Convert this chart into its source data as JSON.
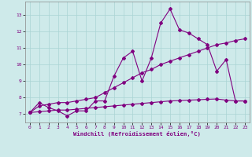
{
  "xlabel": "Windchill (Refroidissement éolien,°C)",
  "background_color": "#ceeaea",
  "grid_color": "#aad4d4",
  "line_color": "#800080",
  "xlim": [
    -0.5,
    23.5
  ],
  "ylim": [
    6.5,
    13.8
  ],
  "yticks": [
    7,
    8,
    9,
    10,
    11,
    12,
    13
  ],
  "xticks": [
    0,
    1,
    2,
    3,
    4,
    5,
    6,
    7,
    8,
    9,
    10,
    11,
    12,
    13,
    14,
    15,
    16,
    17,
    18,
    19,
    20,
    21,
    22,
    23
  ],
  "series1_x": [
    0,
    1,
    2,
    3,
    4,
    5,
    6,
    7,
    8,
    9,
    10,
    11,
    12,
    13,
    14,
    15,
    16,
    17,
    18,
    19,
    20,
    21,
    22,
    23
  ],
  "series1_y": [
    7.1,
    7.7,
    7.4,
    7.2,
    6.9,
    7.2,
    7.2,
    7.8,
    7.8,
    9.3,
    10.4,
    10.8,
    9.0,
    10.4,
    12.5,
    13.35,
    12.1,
    11.9,
    11.55,
    11.2,
    9.6,
    10.3,
    7.8,
    7.8
  ],
  "series2_x": [
    0,
    1,
    2,
    3,
    4,
    5,
    6,
    7,
    8,
    9,
    10,
    11,
    12,
    13,
    14,
    15,
    16,
    17,
    18,
    19,
    20,
    21,
    22,
    23
  ],
  "series2_y": [
    7.1,
    7.5,
    7.6,
    7.7,
    7.7,
    7.8,
    7.9,
    8.0,
    8.3,
    8.6,
    8.9,
    9.2,
    9.5,
    9.7,
    10.0,
    10.2,
    10.4,
    10.6,
    10.8,
    11.0,
    11.2,
    11.3,
    11.45,
    11.55
  ],
  "series3_x": [
    0,
    1,
    2,
    3,
    4,
    5,
    6,
    7,
    8,
    9,
    10,
    11,
    12,
    13,
    14,
    15,
    16,
    17,
    18,
    19,
    20,
    21,
    22,
    23
  ],
  "series3_y": [
    7.1,
    7.15,
    7.2,
    7.25,
    7.25,
    7.3,
    7.35,
    7.4,
    7.45,
    7.5,
    7.55,
    7.6,
    7.65,
    7.7,
    7.75,
    7.8,
    7.82,
    7.85,
    7.87,
    7.9,
    7.92,
    7.85,
    7.8,
    7.8
  ]
}
